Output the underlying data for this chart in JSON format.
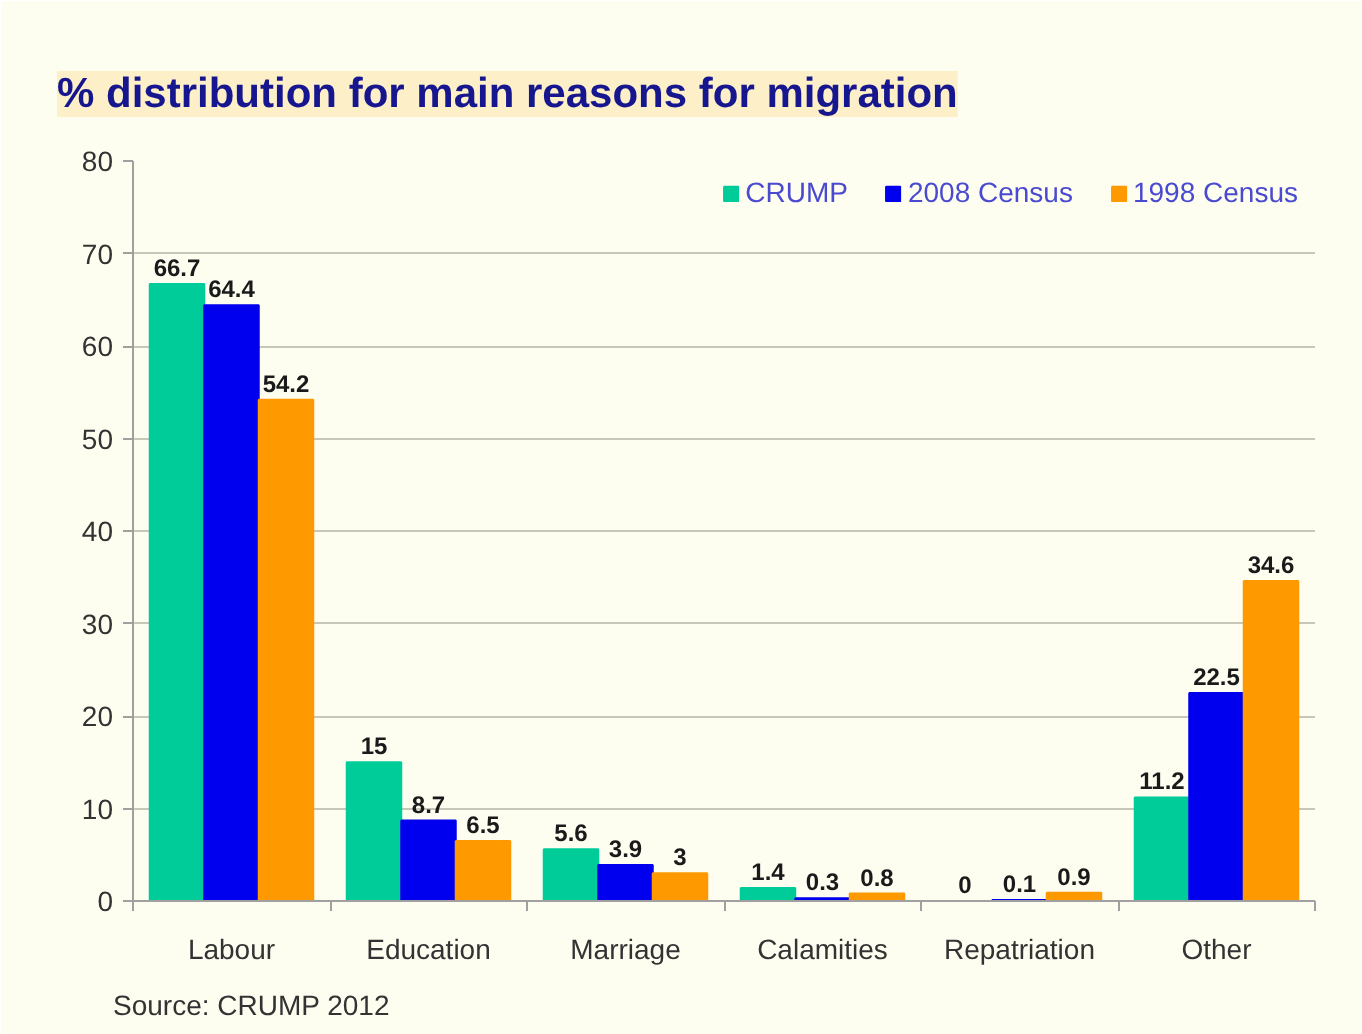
{
  "chart_data": {
    "type": "bar",
    "title": "% distribution for main reasons for migration",
    "categories": [
      "Labour",
      "Education",
      "Marriage",
      "Calamities",
      "Repatriation",
      "Other"
    ],
    "series": [
      {
        "name": "CRUMP",
        "color": "#00cc99",
        "values": [
          66.7,
          15,
          5.6,
          1.4,
          0,
          11.2
        ]
      },
      {
        "name": "2008 Census",
        "color": "#0000ee",
        "values": [
          64.4,
          8.7,
          3.9,
          0.3,
          0.1,
          22.5
        ]
      },
      {
        "name": "1998 Census",
        "color": "#ff9900",
        "values": [
          54.2,
          6.5,
          3,
          0.8,
          0.9,
          34.6
        ]
      }
    ],
    "ylim": [
      0,
      80
    ],
    "yticks": [
      0,
      10,
      20,
      30,
      40,
      50,
      60,
      70,
      80
    ],
    "grid": "y",
    "legend": "top right",
    "data_labels": true,
    "annotations": [
      "Source: CRUMP 2012"
    ]
  }
}
